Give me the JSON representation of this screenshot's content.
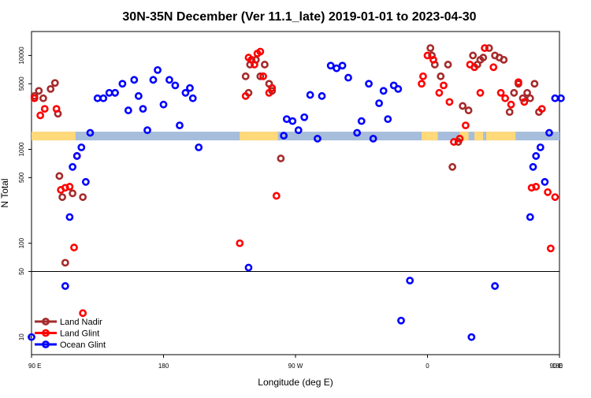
{
  "chart_data": {
    "type": "scatter",
    "title": "30N-35N December (Ver 11.1_late)   2019-01-01 to 2023-04-30",
    "xlabel": "Longitude (deg E)",
    "ylabel": "N Total",
    "x_scale": "linear",
    "y_scale": "log",
    "xlim": [
      90,
      450
    ],
    "ylim": [
      6.5,
      18000
    ],
    "x_ticks": [
      {
        "value": 90,
        "label": "90 E"
      },
      {
        "value": 180,
        "label": "180"
      },
      {
        "value": 270,
        "label": "90 W"
      },
      {
        "value": 360,
        "label": "0"
      },
      {
        "value": 450,
        "label": "90 E"
      }
    ],
    "x_ticks_right": {
      "value": 450,
      "label": "180"
    },
    "y_ticks": [
      {
        "value": 10,
        "label": "10"
      },
      {
        "value": 50,
        "label": "50"
      },
      {
        "value": 100,
        "label": "100"
      },
      {
        "value": 500,
        "label": "500"
      },
      {
        "value": 1000,
        "label": "1000"
      },
      {
        "value": 5000,
        "label": "5000"
      },
      {
        "value": 10000,
        "label": "10000"
      }
    ],
    "reference_line": {
      "y": 50,
      "color": "#000000"
    },
    "land_mask": {
      "y": 1400,
      "land_color": "#FFD97A",
      "ocean_color": "#A6BDDB",
      "land_ranges": [
        [
          90,
          120
        ],
        [
          232,
          258
        ],
        [
          356,
          367
        ],
        [
          382,
          388
        ],
        [
          392,
          398
        ],
        [
          400,
          420
        ],
        [
          450,
          510
        ]
      ]
    },
    "legend_position": "bottom-left",
    "series": [
      {
        "name": "Land Nadir",
        "color": "#A52A2A",
        "points": [
          [
            92,
            3700
          ],
          [
            95,
            4200
          ],
          [
            98,
            3500
          ],
          [
            103,
            4400
          ],
          [
            106,
            5100
          ],
          [
            108,
            2400
          ],
          [
            109,
            520
          ],
          [
            111,
            310
          ],
          [
            113,
            62
          ],
          [
            118,
            340
          ],
          [
            125,
            310
          ],
          [
            236,
            6000
          ],
          [
            238,
            4000
          ],
          [
            239,
            8000
          ],
          [
            243,
            9000
          ],
          [
            246,
            6000
          ],
          [
            249,
            8000
          ],
          [
            252,
            5000
          ],
          [
            254,
            4200
          ],
          [
            260,
            800
          ],
          [
            362,
            12000
          ],
          [
            363,
            10000
          ],
          [
            365,
            8000
          ],
          [
            369,
            6000
          ],
          [
            374,
            8000
          ],
          [
            377,
            650
          ],
          [
            381,
            1200
          ],
          [
            384,
            2900
          ],
          [
            388,
            2600
          ],
          [
            391,
            10000
          ],
          [
            394,
            8000
          ],
          [
            396,
            9000
          ],
          [
            398,
            9500
          ],
          [
            402,
            12000
          ],
          [
            406,
            10000
          ],
          [
            409,
            9500
          ],
          [
            412,
            9000
          ],
          [
            416,
            2500
          ],
          [
            419,
            4000
          ],
          [
            422,
            5000
          ],
          [
            425,
            3500
          ],
          [
            428,
            4000
          ],
          [
            430,
            3500
          ],
          [
            433,
            5000
          ],
          [
            436,
            2500
          ]
        ]
      },
      {
        "name": "Land Glint",
        "color": "#FF0000",
        "points": [
          [
            92,
            3500
          ],
          [
            96,
            2300
          ],
          [
            99,
            2700
          ],
          [
            107,
            2700
          ],
          [
            110,
            370
          ],
          [
            113,
            390
          ],
          [
            116,
            400
          ],
          [
            119,
            90
          ],
          [
            121,
            850
          ],
          [
            125,
            18
          ],
          [
            232,
            100
          ],
          [
            236,
            3700
          ],
          [
            238,
            9500
          ],
          [
            240,
            9000
          ],
          [
            242,
            8000
          ],
          [
            244,
            10500
          ],
          [
            246,
            11000
          ],
          [
            248,
            6000
          ],
          [
            252,
            4000
          ],
          [
            254,
            4500
          ],
          [
            257,
            320
          ],
          [
            356,
            5000
          ],
          [
            357,
            6000
          ],
          [
            360,
            10000
          ],
          [
            364,
            9000
          ],
          [
            368,
            4000
          ],
          [
            371,
            4800
          ],
          [
            375,
            3200
          ],
          [
            378,
            1200
          ],
          [
            382,
            1300
          ],
          [
            386,
            1800
          ],
          [
            389,
            8000
          ],
          [
            392,
            7500
          ],
          [
            396,
            4000
          ],
          [
            399,
            12000
          ],
          [
            405,
            7500
          ],
          [
            410,
            4000
          ],
          [
            413,
            3500
          ],
          [
            417,
            3000
          ],
          [
            422,
            5200
          ],
          [
            426,
            3200
          ],
          [
            431,
            390
          ],
          [
            434,
            400
          ],
          [
            438,
            2700
          ],
          [
            442,
            350
          ],
          [
            444,
            88
          ],
          [
            447,
            310
          ]
        ]
      },
      {
        "name": "Ocean Glint",
        "color": "#0000FF",
        "points": [
          [
            90,
            10
          ],
          [
            113,
            35
          ],
          [
            116,
            190
          ],
          [
            118,
            650
          ],
          [
            121,
            850
          ],
          [
            124,
            1050
          ],
          [
            127,
            450
          ],
          [
            130,
            1500
          ],
          [
            135,
            3500
          ],
          [
            139,
            3500
          ],
          [
            143,
            4000
          ],
          [
            147,
            4000
          ],
          [
            152,
            5000
          ],
          [
            156,
            2600
          ],
          [
            160,
            5500
          ],
          [
            163,
            3700
          ],
          [
            166,
            2700
          ],
          [
            169,
            1600
          ],
          [
            173,
            5500
          ],
          [
            176,
            7000
          ],
          [
            180,
            3000
          ],
          [
            184,
            5500
          ],
          [
            188,
            4800
          ],
          [
            191,
            1800
          ],
          [
            195,
            4000
          ],
          [
            198,
            4500
          ],
          [
            200,
            3500
          ],
          [
            204,
            1050
          ],
          [
            238,
            55
          ],
          [
            262,
            1400
          ],
          [
            264,
            2100
          ],
          [
            268,
            2000
          ],
          [
            272,
            1600
          ],
          [
            276,
            2200
          ],
          [
            280,
            3800
          ],
          [
            285,
            1300
          ],
          [
            288,
            3700
          ],
          [
            294,
            7800
          ],
          [
            298,
            7300
          ],
          [
            302,
            7800
          ],
          [
            306,
            5800
          ],
          [
            312,
            1500
          ],
          [
            315,
            2000
          ],
          [
            320,
            5000
          ],
          [
            323,
            1300
          ],
          [
            327,
            3100
          ],
          [
            330,
            4200
          ],
          [
            333,
            2100
          ],
          [
            337,
            4800
          ],
          [
            340,
            4400
          ],
          [
            342,
            15
          ],
          [
            348,
            40
          ],
          [
            390,
            10
          ],
          [
            406,
            35
          ],
          [
            430,
            190
          ],
          [
            432,
            650
          ],
          [
            434,
            850
          ],
          [
            437,
            1050
          ],
          [
            440,
            450
          ],
          [
            443,
            1500
          ],
          [
            447,
            3500
          ],
          [
            451,
            3500
          ],
          [
            454,
            4000
          ],
          [
            457,
            4000
          ],
          [
            461,
            5000
          ],
          [
            464,
            2600
          ]
        ]
      }
    ]
  }
}
